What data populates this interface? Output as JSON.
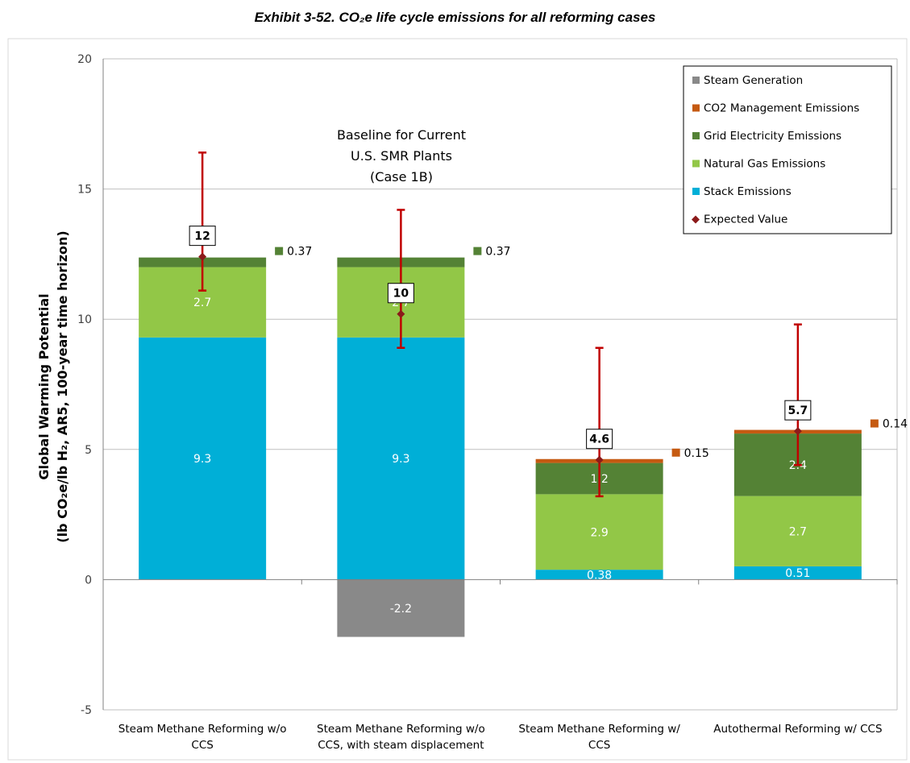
{
  "title": "Exhibit 3-52. CO₂e life cycle emissions for all reforming cases",
  "chart_data": {
    "type": "bar",
    "stacked": true,
    "categories": [
      [
        "Steam Methane Reforming w/o",
        "CCS"
      ],
      [
        "Steam Methane Reforming w/o",
        "CCS, with steam displacement"
      ],
      [
        "Steam Methane Reforming w/",
        "CCS"
      ],
      [
        "Autothermal Reforming w/ CCS"
      ]
    ],
    "ylabel_line1": "Global Warming Potential",
    "ylabel_line2": "(lb CO₂e/lb H₂, AR5, 100-year time horizon)",
    "ylim": [
      -5,
      20
    ],
    "yticks": [
      -5,
      0,
      5,
      10,
      15,
      20
    ],
    "grid": true,
    "legend_position": "top-right",
    "series": [
      {
        "name": "Steam Generation",
        "color": "#898989",
        "values": [
          0,
          -2.2,
          0,
          0
        ],
        "labels": [
          "",
          "-2.2",
          "",
          ""
        ]
      },
      {
        "name": "CO2 Management Emissions",
        "color": "#C55A11",
        "values": [
          0,
          0,
          0.15,
          0.14
        ],
        "labels": [
          "",
          "",
          "0.15",
          "0.14"
        ]
      },
      {
        "name": "Grid Electricity Emissions",
        "color": "#548235",
        "values": [
          0.37,
          0.37,
          1.2,
          2.4
        ],
        "labels": [
          "0.37",
          "0.37",
          "1.2",
          "2.4"
        ]
      },
      {
        "name": "Natural Gas Emissions",
        "color": "#92C747",
        "values": [
          2.7,
          2.7,
          2.9,
          2.7
        ],
        "labels": [
          "2.7",
          "2.7",
          "2.9",
          "2.7"
        ]
      },
      {
        "name": "Stack Emissions",
        "color": "#00AFD7",
        "values": [
          9.3,
          9.3,
          0.38,
          0.51
        ],
        "labels": [
          "9.3",
          "9.3",
          "0.38",
          "0.51"
        ]
      }
    ],
    "stack_order": [
      "Stack Emissions",
      "Natural Gas Emissions",
      "Grid Electricity Emissions",
      "CO2 Management Emissions"
    ],
    "outside_labels": [
      {
        "category": 0,
        "series": "Grid Electricity Emissions",
        "label": "0.37"
      },
      {
        "category": 1,
        "series": "Grid Electricity Emissions",
        "label": "0.37"
      },
      {
        "category": 2,
        "series": "CO2 Management Emissions",
        "label": "0.15"
      },
      {
        "category": 3,
        "series": "CO2 Management Emissions",
        "label": "0.14"
      }
    ],
    "expected_value": {
      "name": "Expected Value",
      "color": "#8B1A1A",
      "values": [
        12.4,
        10.2,
        4.6,
        5.7
      ],
      "labels": [
        "12",
        "10",
        "4.6",
        "5.7"
      ],
      "error_low": [
        11.1,
        8.9,
        3.2,
        4.4
      ],
      "error_high": [
        16.4,
        14.2,
        8.9,
        9.8
      ],
      "error_color": "#C00000"
    },
    "annotation": [
      "Baseline for Current",
      "U.S. SMR Plants",
      "(Case 1B)"
    ]
  }
}
